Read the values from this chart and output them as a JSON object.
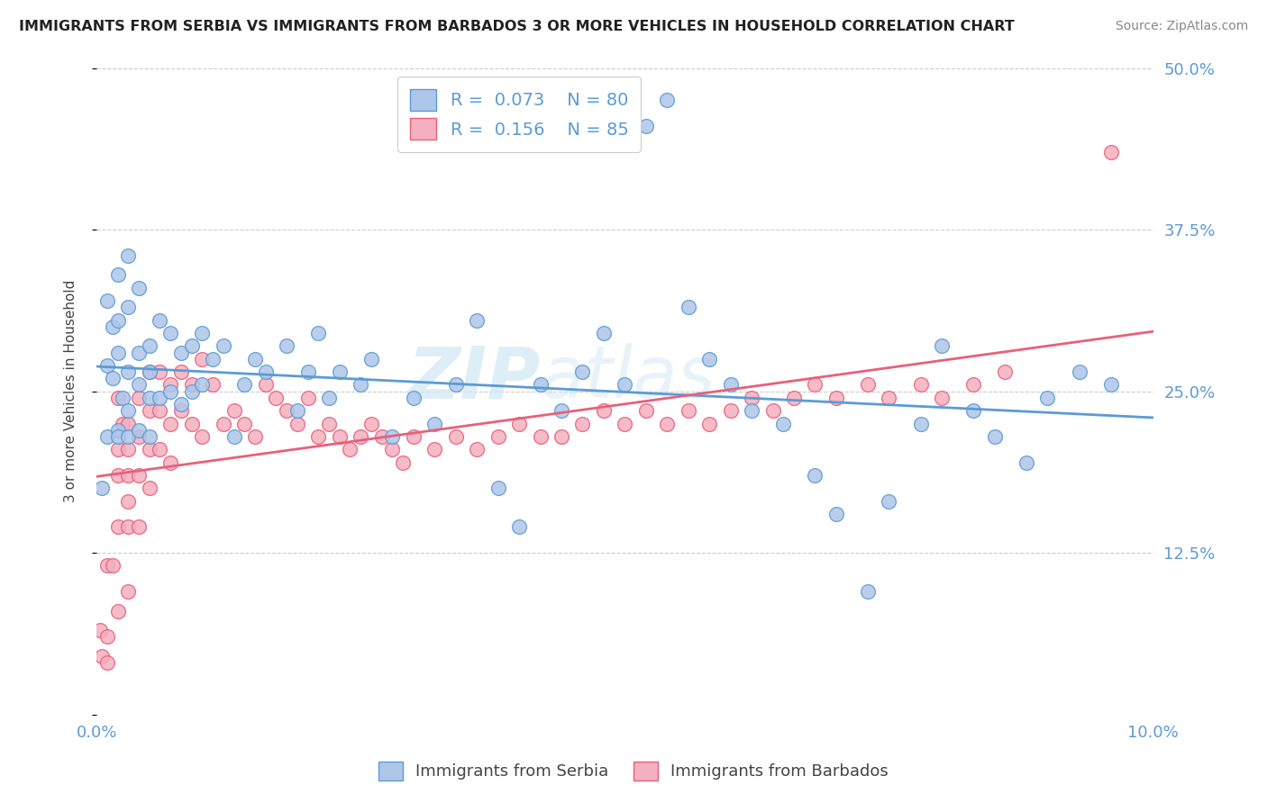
{
  "title": "IMMIGRANTS FROM SERBIA VS IMMIGRANTS FROM BARBADOS 3 OR MORE VEHICLES IN HOUSEHOLD CORRELATION CHART",
  "source": "Source: ZipAtlas.com",
  "ylabel": "3 or more Vehicles in Household",
  "xlim": [
    0.0,
    0.1
  ],
  "ylim": [
    0.0,
    0.5
  ],
  "xticks": [
    0.0,
    0.02,
    0.04,
    0.06,
    0.08,
    0.1
  ],
  "xticklabels": [
    "0.0%",
    "",
    "",
    "",
    "",
    "10.0%"
  ],
  "yticks": [
    0.0,
    0.125,
    0.25,
    0.375,
    0.5
  ],
  "yticklabels": [
    "",
    "12.5%",
    "25.0%",
    "37.5%",
    "50.0%"
  ],
  "legend1_label": "Immigrants from Serbia",
  "legend2_label": "Immigrants from Barbados",
  "r_serbia": 0.073,
  "n_serbia": 80,
  "r_barbados": 0.156,
  "n_barbados": 85,
  "serbia_color": "#aec6e8",
  "barbados_color": "#f4afc0",
  "serbia_edge_color": "#5b9bd5",
  "barbados_edge_color": "#e8607a",
  "watermark_color": "#d0e8f5",
  "watermark": "ZIPatlas",
  "serbia_x": [
    0.0005,
    0.001,
    0.001,
    0.001,
    0.0015,
    0.0015,
    0.002,
    0.002,
    0.002,
    0.002,
    0.002,
    0.0025,
    0.003,
    0.003,
    0.003,
    0.003,
    0.003,
    0.004,
    0.004,
    0.004,
    0.004,
    0.005,
    0.005,
    0.005,
    0.005,
    0.006,
    0.006,
    0.007,
    0.007,
    0.008,
    0.008,
    0.009,
    0.009,
    0.01,
    0.01,
    0.011,
    0.012,
    0.013,
    0.014,
    0.015,
    0.016,
    0.018,
    0.019,
    0.02,
    0.021,
    0.022,
    0.023,
    0.025,
    0.026,
    0.028,
    0.03,
    0.032,
    0.034,
    0.036,
    0.038,
    0.04,
    0.042,
    0.044,
    0.046,
    0.048,
    0.05,
    0.052,
    0.054,
    0.056,
    0.058,
    0.06,
    0.062,
    0.065,
    0.068,
    0.07,
    0.073,
    0.075,
    0.078,
    0.08,
    0.083,
    0.085,
    0.088,
    0.09,
    0.093,
    0.096
  ],
  "serbia_y": [
    0.175,
    0.32,
    0.27,
    0.215,
    0.3,
    0.26,
    0.34,
    0.305,
    0.28,
    0.22,
    0.215,
    0.245,
    0.355,
    0.315,
    0.265,
    0.235,
    0.215,
    0.33,
    0.28,
    0.255,
    0.22,
    0.285,
    0.265,
    0.245,
    0.215,
    0.305,
    0.245,
    0.295,
    0.25,
    0.28,
    0.24,
    0.285,
    0.25,
    0.295,
    0.255,
    0.275,
    0.285,
    0.215,
    0.255,
    0.275,
    0.265,
    0.285,
    0.235,
    0.265,
    0.295,
    0.245,
    0.265,
    0.255,
    0.275,
    0.215,
    0.245,
    0.225,
    0.255,
    0.305,
    0.175,
    0.145,
    0.255,
    0.235,
    0.265,
    0.295,
    0.255,
    0.455,
    0.475,
    0.315,
    0.275,
    0.255,
    0.235,
    0.225,
    0.185,
    0.155,
    0.095,
    0.165,
    0.225,
    0.285,
    0.235,
    0.215,
    0.195,
    0.245,
    0.265,
    0.255
  ],
  "barbados_x": [
    0.0003,
    0.0005,
    0.001,
    0.001,
    0.001,
    0.0015,
    0.002,
    0.002,
    0.002,
    0.002,
    0.002,
    0.0025,
    0.003,
    0.003,
    0.003,
    0.003,
    0.003,
    0.003,
    0.004,
    0.004,
    0.004,
    0.004,
    0.005,
    0.005,
    0.005,
    0.005,
    0.006,
    0.006,
    0.006,
    0.007,
    0.007,
    0.007,
    0.008,
    0.008,
    0.009,
    0.009,
    0.01,
    0.01,
    0.011,
    0.012,
    0.013,
    0.014,
    0.015,
    0.016,
    0.017,
    0.018,
    0.019,
    0.02,
    0.021,
    0.022,
    0.023,
    0.024,
    0.025,
    0.026,
    0.027,
    0.028,
    0.029,
    0.03,
    0.032,
    0.034,
    0.036,
    0.038,
    0.04,
    0.042,
    0.044,
    0.046,
    0.048,
    0.05,
    0.052,
    0.054,
    0.056,
    0.058,
    0.06,
    0.062,
    0.064,
    0.066,
    0.068,
    0.07,
    0.073,
    0.075,
    0.078,
    0.08,
    0.083,
    0.086,
    0.096
  ],
  "barbados_y": [
    0.065,
    0.045,
    0.06,
    0.04,
    0.115,
    0.115,
    0.245,
    0.205,
    0.185,
    0.145,
    0.08,
    0.225,
    0.225,
    0.205,
    0.185,
    0.165,
    0.145,
    0.095,
    0.245,
    0.215,
    0.185,
    0.145,
    0.265,
    0.235,
    0.205,
    0.175,
    0.265,
    0.235,
    0.205,
    0.255,
    0.225,
    0.195,
    0.265,
    0.235,
    0.255,
    0.225,
    0.275,
    0.215,
    0.255,
    0.225,
    0.235,
    0.225,
    0.215,
    0.255,
    0.245,
    0.235,
    0.225,
    0.245,
    0.215,
    0.225,
    0.215,
    0.205,
    0.215,
    0.225,
    0.215,
    0.205,
    0.195,
    0.215,
    0.205,
    0.215,
    0.205,
    0.215,
    0.225,
    0.215,
    0.215,
    0.225,
    0.235,
    0.225,
    0.235,
    0.225,
    0.235,
    0.225,
    0.235,
    0.245,
    0.235,
    0.245,
    0.255,
    0.245,
    0.255,
    0.245,
    0.255,
    0.245,
    0.255,
    0.265,
    0.435
  ]
}
